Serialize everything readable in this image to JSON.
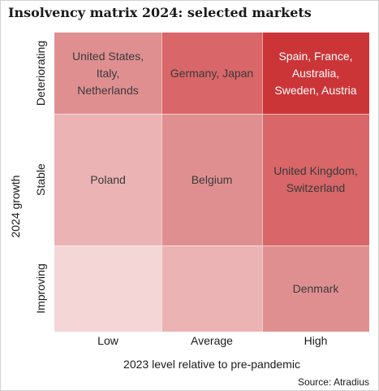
{
  "title": "Insolvency matrix 2024: selected markets",
  "chart_data": {
    "type": "heatmap",
    "xlabel": "2023 level relative to pre-pandemic",
    "ylabel": "2024 growth",
    "x_categories": [
      "Low",
      "Average",
      "High"
    ],
    "y_categories": [
      "Deteriorating",
      "Stable",
      "Improving"
    ],
    "cells": [
      [
        {
          "text": "United States, Italy,\nNetherlands",
          "color": "#e08f91",
          "text_color": "#3a3a3a"
        },
        {
          "text": "Germany, Japan",
          "color": "#d96668",
          "text_color": "#3a3a3a"
        },
        {
          "text": "Spain, France,\nAustralia,\nSweden, Austria",
          "color": "#cc3538",
          "text_color": "#ffffff"
        }
      ],
      [
        {
          "text": "Poland",
          "color": "#ebb3b4",
          "text_color": "#3a3a3a"
        },
        {
          "text": "Belgium",
          "color": "#e08f91",
          "text_color": "#3a3a3a"
        },
        {
          "text": "United Kingdom,\nSwitzerland",
          "color": "#d96668",
          "text_color": "#3a3a3a"
        }
      ],
      [
        {
          "text": "",
          "color": "#f4d6d7",
          "text_color": "#3a3a3a"
        },
        {
          "text": "",
          "color": "#ebb3b4",
          "text_color": "#3a3a3a"
        },
        {
          "text": "Denmark",
          "color": "#e08f91",
          "text_color": "#3a3a3a"
        }
      ]
    ]
  },
  "source": "Source: Atradius"
}
